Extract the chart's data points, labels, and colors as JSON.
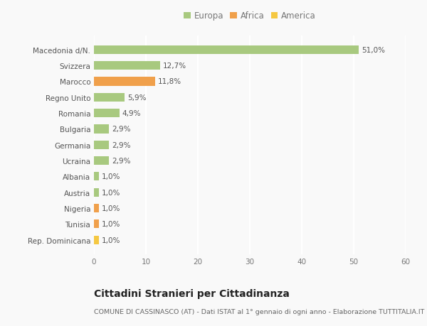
{
  "categories": [
    "Rep. Dominicana",
    "Tunisia",
    "Nigeria",
    "Austria",
    "Albania",
    "Ucraina",
    "Germania",
    "Bulgaria",
    "Romania",
    "Regno Unito",
    "Marocco",
    "Svizzera",
    "Macedonia d/N."
  ],
  "values": [
    1.0,
    1.0,
    1.0,
    1.0,
    1.0,
    2.9,
    2.9,
    2.9,
    4.9,
    5.9,
    11.8,
    12.7,
    51.0
  ],
  "labels": [
    "1,0%",
    "1,0%",
    "1,0%",
    "1,0%",
    "1,0%",
    "2,9%",
    "2,9%",
    "2,9%",
    "4,9%",
    "5,9%",
    "11,8%",
    "12,7%",
    "51,0%"
  ],
  "colors": [
    "#f5c842",
    "#f0a04b",
    "#f0a04b",
    "#a8c97f",
    "#a8c97f",
    "#a8c97f",
    "#a8c97f",
    "#a8c97f",
    "#a8c97f",
    "#a8c97f",
    "#f0a04b",
    "#a8c97f",
    "#a8c97f"
  ],
  "legend": {
    "Europa": "#a8c97f",
    "Africa": "#f0a04b",
    "America": "#f5c842"
  },
  "title": "Cittadini Stranieri per Cittadinanza",
  "subtitle": "COMUNE DI CASSINASCO (AT) - Dati ISTAT al 1° gennaio di ogni anno - Elaborazione TUTTITALIA.IT",
  "xlim": [
    0,
    60
  ],
  "xticks": [
    0,
    10,
    20,
    30,
    40,
    50,
    60
  ],
  "bg_color": "#f9f9f9",
  "bar_height": 0.55,
  "grid_color": "#ffffff",
  "label_fontsize": 7.5,
  "ytick_fontsize": 7.5,
  "xtick_fontsize": 7.5,
  "title_fontsize": 10,
  "subtitle_fontsize": 6.8,
  "legend_fontsize": 8.5
}
